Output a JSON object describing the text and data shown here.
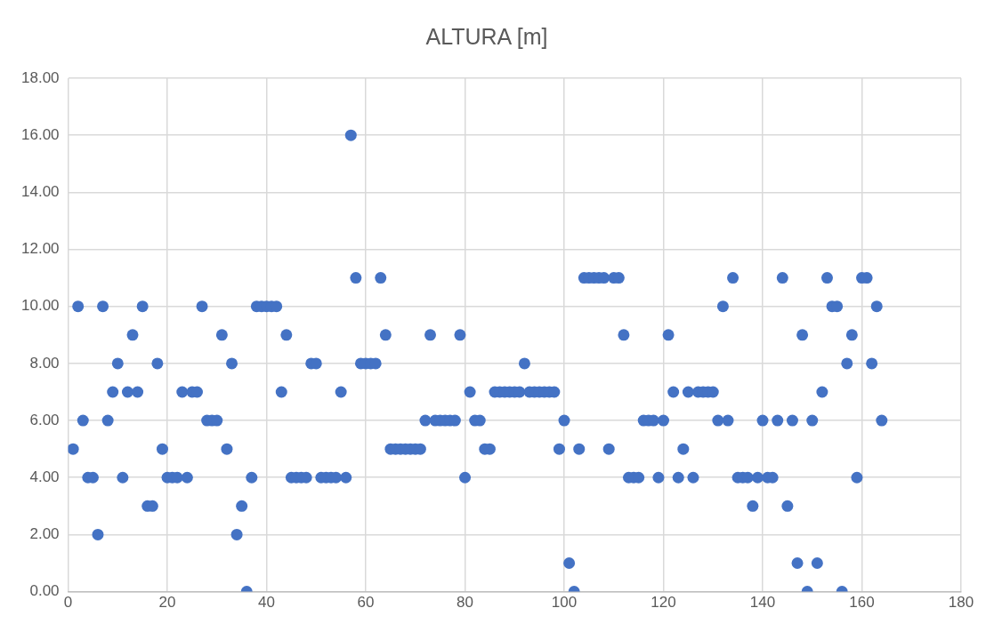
{
  "chart_data": {
    "type": "scatter",
    "title": "ALTURA [m]",
    "x": [
      1,
      2,
      3,
      4,
      5,
      6,
      7,
      8,
      9,
      10,
      11,
      12,
      13,
      14,
      15,
      16,
      17,
      18,
      19,
      20,
      21,
      22,
      23,
      24,
      25,
      26,
      27,
      28,
      29,
      30,
      31,
      32,
      33,
      34,
      35,
      36,
      37,
      38,
      39,
      40,
      41,
      42,
      43,
      44,
      45,
      46,
      47,
      48,
      49,
      50,
      51,
      52,
      53,
      54,
      55,
      56,
      57,
      58,
      59,
      60,
      61,
      62,
      63,
      64,
      65,
      66,
      67,
      68,
      69,
      70,
      71,
      72,
      73,
      74,
      75,
      76,
      77,
      78,
      79,
      80,
      81,
      82,
      83,
      84,
      85,
      86,
      87,
      88,
      89,
      90,
      91,
      92,
      93,
      94,
      95,
      96,
      97,
      98,
      99,
      100,
      101,
      102,
      103,
      104,
      105,
      106,
      107,
      108,
      109,
      110,
      111,
      112,
      113,
      114,
      115,
      116,
      117,
      118,
      119,
      120,
      121,
      122,
      123,
      124,
      125,
      126,
      127,
      128,
      129,
      130,
      131,
      132,
      133,
      134,
      135,
      136,
      137,
      138,
      139,
      140,
      141,
      142,
      143,
      144,
      145,
      146,
      147,
      148,
      149,
      150,
      151,
      152,
      153,
      154,
      155,
      156,
      157,
      158,
      159,
      160,
      161,
      162,
      163,
      164
    ],
    "values": [
      5,
      10,
      6,
      4,
      4,
      2,
      10,
      6,
      7,
      8,
      4,
      7,
      9,
      7,
      10,
      3,
      3,
      8,
      5,
      4,
      4,
      4,
      7,
      4,
      7,
      7,
      10,
      6,
      6,
      6,
      9,
      5,
      8,
      2,
      3,
      0,
      4,
      10,
      10,
      10,
      10,
      10,
      7,
      9,
      4,
      4,
      4,
      4,
      8,
      8,
      4,
      4,
      4,
      4,
      7,
      4,
      16,
      11,
      8,
      8,
      8,
      8,
      11,
      9,
      5,
      5,
      5,
      5,
      5,
      5,
      5,
      6,
      9,
      6,
      6,
      6,
      6,
      6,
      9,
      4,
      7,
      6,
      6,
      5,
      5,
      7,
      7,
      7,
      7,
      7,
      7,
      8,
      7,
      7,
      7,
      7,
      7,
      7,
      5,
      6,
      1,
      0,
      5,
      11,
      11,
      11,
      11,
      11,
      5,
      11,
      11,
      9,
      4,
      4,
      4,
      6,
      6,
      6,
      4,
      6,
      9,
      7,
      4,
      5,
      7,
      4,
      7,
      7,
      7,
      7,
      6,
      10,
      6,
      11,
      4,
      4,
      4,
      3,
      4,
      6,
      4,
      4,
      6,
      11,
      3,
      6,
      1,
      9,
      0,
      6,
      1,
      7,
      11,
      10,
      10,
      0,
      8,
      9,
      4,
      11,
      11,
      8,
      10,
      6
    ],
    "color": "#4472c4",
    "marker": "circle",
    "grid": true,
    "xlim": [
      0,
      180
    ],
    "xticks": [
      0,
      20,
      40,
      60,
      80,
      100,
      120,
      140,
      160,
      180
    ],
    "ylim": [
      0,
      18
    ],
    "yticks": [
      {
        "value": 0,
        "label": "0.00"
      },
      {
        "value": 2,
        "label": "2.00"
      },
      {
        "value": 4,
        "label": "4.00"
      },
      {
        "value": 6,
        "label": "6.00"
      },
      {
        "value": 8,
        "label": "8.00"
      },
      {
        "value": 10,
        "label": "10.00"
      },
      {
        "value": 12,
        "label": "12.00"
      },
      {
        "value": 14,
        "label": "14.00"
      },
      {
        "value": 16,
        "label": "16.00"
      },
      {
        "value": 18,
        "label": "18.00"
      }
    ]
  }
}
